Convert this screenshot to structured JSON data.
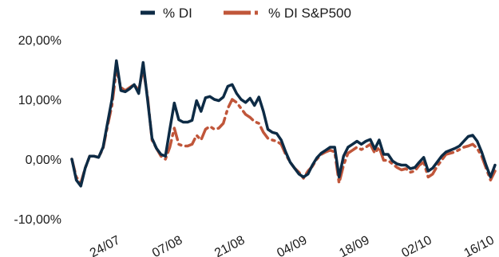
{
  "chart_data": {
    "type": "line",
    "title": "",
    "xlabel": "",
    "ylabel": "",
    "ylim": [
      -0.1,
      0.2
    ],
    "grid": false,
    "legend_position": "top-center",
    "y_ticks": [
      {
        "value": 0.2,
        "label": "20,00%"
      },
      {
        "value": 0.1,
        "label": "10,00%"
      },
      {
        "value": 0.0,
        "label": "0,00%"
      },
      {
        "value": -0.1,
        "label": "-10,00%"
      }
    ],
    "x_ticks": [
      {
        "x": 11,
        "label": "24/07"
      },
      {
        "x": 25,
        "label": "07/08"
      },
      {
        "x": 39,
        "label": "21/08"
      },
      {
        "x": 53,
        "label": "04/09"
      },
      {
        "x": 67,
        "label": "18/09"
      },
      {
        "x": 81,
        "label": "02/10"
      },
      {
        "x": 95,
        "label": "16/10"
      }
    ],
    "x": [
      0,
      1,
      2,
      3,
      4,
      5,
      6,
      7,
      8,
      9,
      10,
      11,
      12,
      13,
      14,
      15,
      16,
      17,
      18,
      19,
      20,
      21,
      22,
      23,
      24,
      25,
      26,
      27,
      28,
      29,
      30,
      31,
      32,
      33,
      34,
      35,
      36,
      37,
      38,
      39,
      40,
      41,
      42,
      43,
      44,
      45,
      46,
      47,
      48,
      49,
      50,
      51,
      52,
      53,
      54,
      55,
      56,
      57,
      58,
      59,
      60,
      61,
      62,
      63,
      64,
      65,
      66,
      67,
      68,
      69,
      70,
      71,
      72,
      73,
      74,
      75,
      76,
      77,
      78,
      79,
      80,
      81,
      82,
      83,
      84,
      85,
      86,
      87,
      88,
      89,
      90,
      91,
      92,
      93,
      94,
      95
    ],
    "series": [
      {
        "name": "% DI",
        "color": "#0d2b45",
        "style": "solid",
        "values": [
          0.0,
          -0.035,
          -0.045,
          -0.015,
          0.005,
          0.005,
          0.003,
          0.02,
          0.06,
          0.1,
          0.165,
          0.115,
          0.113,
          0.118,
          0.125,
          0.11,
          0.162,
          0.1,
          0.035,
          0.018,
          0.008,
          0.005,
          0.05,
          0.094,
          0.066,
          0.062,
          0.062,
          0.065,
          0.098,
          0.08,
          0.103,
          0.105,
          0.1,
          0.098,
          0.104,
          0.122,
          0.125,
          0.11,
          0.1,
          0.095,
          0.102,
          0.09,
          0.104,
          0.08,
          0.05,
          0.045,
          0.043,
          0.032,
          0.012,
          -0.005,
          -0.015,
          -0.025,
          -0.03,
          -0.025,
          -0.01,
          0.002,
          0.01,
          0.015,
          0.02,
          0.02,
          -0.03,
          0.005,
          0.02,
          0.025,
          0.03,
          0.025,
          0.03,
          0.033,
          0.017,
          0.032,
          0.008,
          0.008,
          -0.003,
          -0.008,
          -0.01,
          -0.01,
          -0.016,
          -0.014,
          -0.005,
          0.003,
          -0.02,
          -0.015,
          -0.005,
          0.005,
          0.012,
          0.015,
          0.018,
          0.022,
          0.03,
          0.038,
          0.04,
          0.03,
          0.012,
          -0.01,
          -0.03,
          -0.01
        ]
      },
      {
        "name": "% DI S&P500",
        "color": "#c0563a",
        "style": "dashdot",
        "values": [
          0.0,
          -0.03,
          -0.04,
          -0.015,
          0.005,
          0.005,
          0.003,
          0.018,
          0.055,
          0.09,
          0.15,
          0.12,
          0.115,
          0.12,
          0.125,
          0.115,
          0.152,
          0.105,
          0.032,
          0.018,
          0.005,
          0.0,
          0.02,
          0.052,
          0.025,
          0.022,
          0.022,
          0.025,
          0.04,
          0.032,
          0.05,
          0.055,
          0.05,
          0.052,
          0.06,
          0.085,
          0.1,
          0.095,
          0.085,
          0.075,
          0.07,
          0.063,
          0.06,
          0.045,
          0.035,
          0.032,
          0.03,
          0.025,
          0.008,
          -0.005,
          -0.015,
          -0.022,
          -0.032,
          -0.02,
          -0.012,
          0.0,
          0.008,
          0.012,
          0.015,
          0.012,
          -0.04,
          -0.01,
          0.01,
          0.015,
          0.02,
          0.016,
          0.02,
          0.025,
          0.01,
          0.02,
          -0.002,
          -0.002,
          -0.008,
          -0.014,
          -0.018,
          -0.016,
          -0.022,
          -0.02,
          -0.01,
          -0.005,
          -0.03,
          -0.025,
          -0.012,
          -0.002,
          0.008,
          0.01,
          0.012,
          0.016,
          0.02,
          0.022,
          0.025,
          0.018,
          0.005,
          -0.015,
          -0.035,
          -0.02
        ]
      }
    ]
  }
}
